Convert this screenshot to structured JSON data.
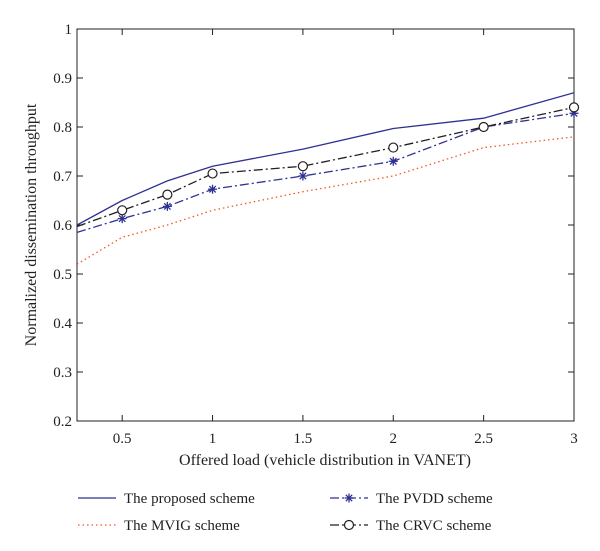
{
  "chart_data": {
    "type": "line",
    "xlabel": "Offered load (vehicle distribution in VANET)",
    "ylabel": "Normalized dissemination throughput",
    "xlim": [
      0.25,
      3
    ],
    "ylim": [
      0.2,
      1
    ],
    "x_ticks": [
      0.5,
      1,
      1.5,
      2,
      2.5,
      3
    ],
    "x_tick_labels": [
      "0.5",
      "1",
      "1.5",
      "2",
      "2.5",
      "3"
    ],
    "y_ticks": [
      0.2,
      0.3,
      0.4,
      0.5,
      0.6,
      0.7,
      0.8,
      0.9,
      1
    ],
    "y_tick_labels": [
      "0.2",
      "0.3",
      "0.4",
      "0.5",
      "0.6",
      "0.7",
      "0.8",
      "0.9",
      "1"
    ],
    "grid": false,
    "legend_position": "bottom",
    "series": [
      {
        "name": "The proposed scheme",
        "color": "#2e3192",
        "line_style": "solid",
        "marker": "none",
        "x": [
          0.25,
          0.5,
          0.75,
          1,
          1.5,
          2,
          2.5,
          3
        ],
        "y": [
          0.6,
          0.65,
          0.69,
          0.72,
          0.755,
          0.797,
          0.818,
          0.87
        ]
      },
      {
        "name": "The PVDD scheme",
        "color": "#2e3192",
        "line_style": "dashdot",
        "marker": "star",
        "x": [
          0.25,
          0.5,
          0.75,
          1,
          1.5,
          2,
          2.5,
          3
        ],
        "y": [
          0.585,
          0.613,
          0.638,
          0.673,
          0.7,
          0.73,
          0.8,
          0.828
        ]
      },
      {
        "name": "The MVIG scheme",
        "color": "#f15a24",
        "line_style": "dotted",
        "marker": "none",
        "x": [
          0.25,
          0.5,
          0.75,
          1,
          1.5,
          2,
          2.5,
          3
        ],
        "y": [
          0.52,
          0.575,
          0.6,
          0.63,
          0.668,
          0.7,
          0.758,
          0.78
        ]
      },
      {
        "name": "The CRVC scheme",
        "color": "#231f20",
        "line_style": "dashdot",
        "marker": "circle",
        "x": [
          0.25,
          0.5,
          0.75,
          1,
          1.5,
          2,
          2.5,
          3
        ],
        "y": [
          0.597,
          0.63,
          0.662,
          0.705,
          0.72,
          0.758,
          0.8,
          0.84
        ]
      }
    ],
    "legend": [
      {
        "series": 0,
        "label": "The proposed scheme"
      },
      {
        "series": 1,
        "label": "The PVDD scheme"
      },
      {
        "series": 2,
        "label": "The MVIG scheme"
      },
      {
        "series": 3,
        "label": "The CRVC scheme"
      }
    ]
  }
}
